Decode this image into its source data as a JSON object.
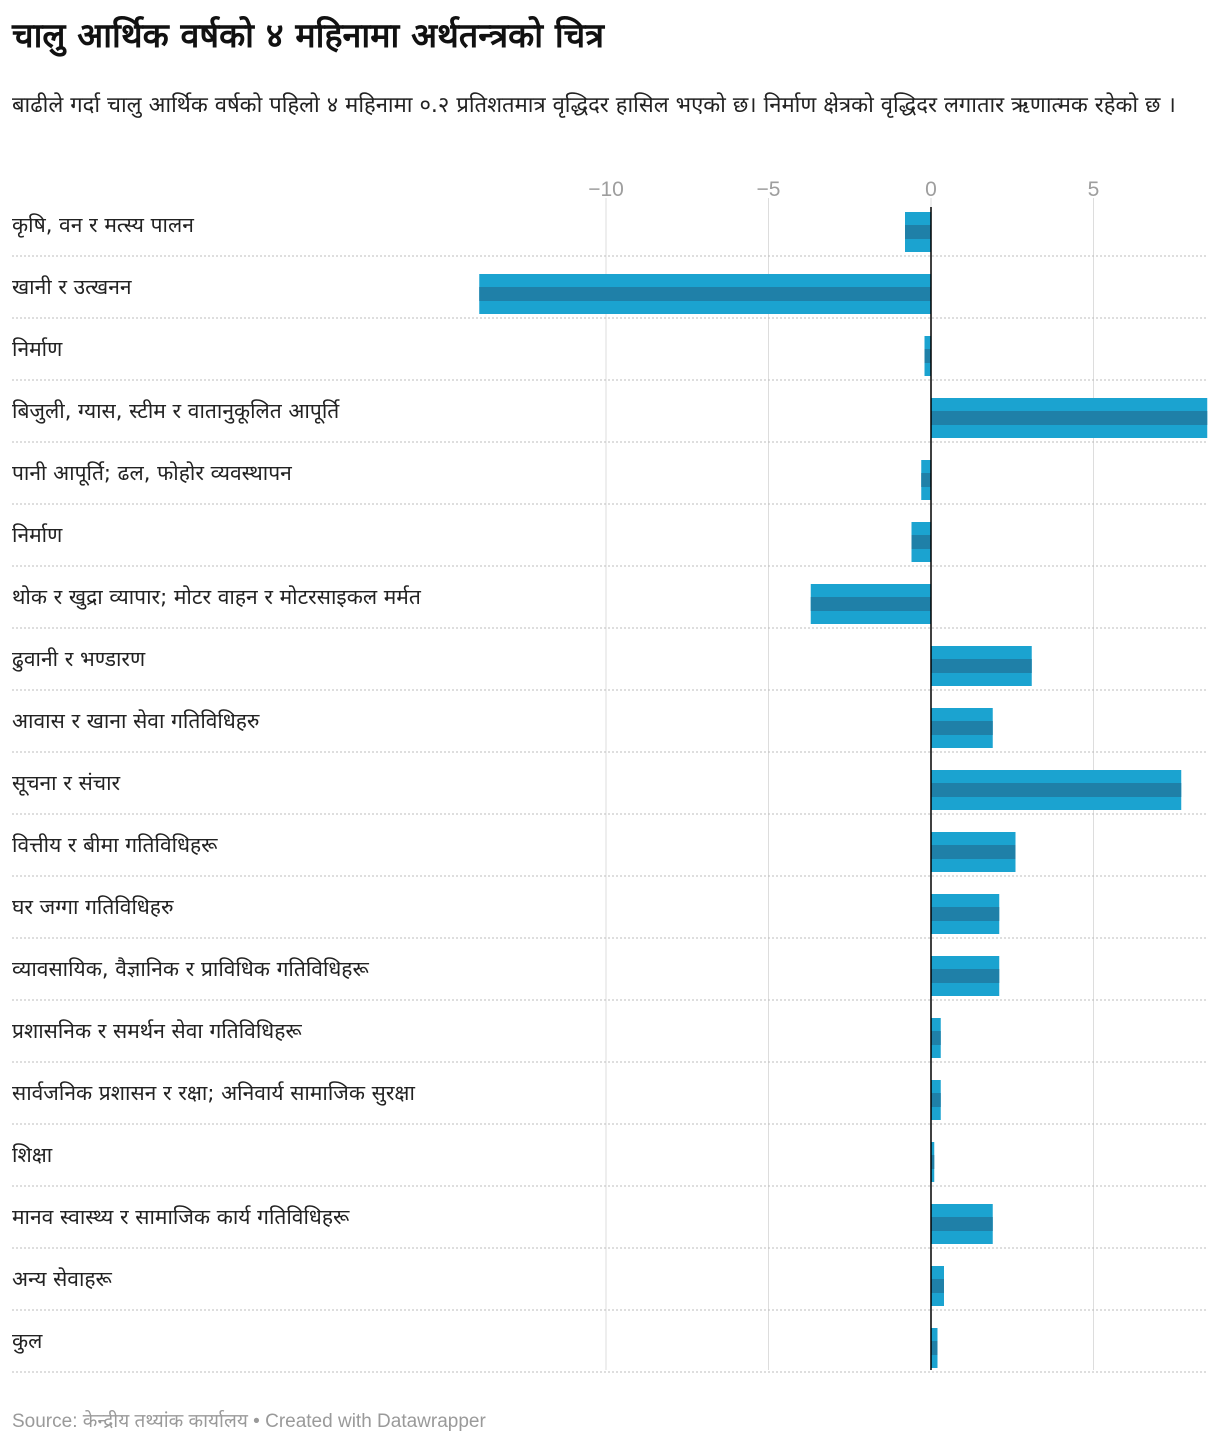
{
  "title": "चालु आर्थिक वर्षको ४ महिनामा अर्थतन्त्रको चित्र",
  "subtitle": "बाढीले गर्दा चालु आर्थिक वर्षको पहिलो ४ महिनामा ०.२ प्रतिशतमात्र वृद्धिदर हासिल भएको छ। निर्माण क्षेत्रको वृद्धिदर लगातार ऋणात्मक रहेको छ ।",
  "footer": {
    "source": "Source: केन्द्रीय तथ्यांक कार्यालय",
    "separator": " • ",
    "credit": "Created with Datawrapper"
  },
  "colors": {
    "bar": "#1ba3d0",
    "bar_inner": "#1f80a8",
    "zero_line": "#000000",
    "grid": "#dddddd",
    "tick_text": "#9e9e9e"
  },
  "chart_data": {
    "type": "bar",
    "orientation": "horizontal",
    "xlim": [
      -14,
      8.5
    ],
    "ticks": [
      -10,
      -5,
      0,
      5
    ],
    "tick_labels": [
      "−10",
      "−5",
      "0",
      "5"
    ],
    "categories": [
      "कृषि, वन र मत्स्य पालन",
      "खानी र उत्खनन",
      "निर्माण",
      "बिजुली, ग्यास, स्टीम र वातानुकूलित आपूर्ति",
      "पानी आपूर्ति; ढल, फोहोर व्यवस्थापन",
      "निर्माण",
      "थोक र खुद्रा व्यापार; मोटर वाहन र मोटरसाइकल मर्मत",
      "ढुवानी र भण्डारण",
      "आवास र खाना सेवा गतिविधिहरु",
      "सूचना र संचार",
      "वित्तीय र बीमा गतिविधिहरू",
      "घर जग्गा गतिविधिहरु",
      "व्यावसायिक, वैज्ञानिक र प्राविधिक गतिविधिहरू",
      "प्रशासनिक र समर्थन सेवा गतिविधिहरू",
      "सार्वजनिक प्रशासन र रक्षा; अनिवार्य सामाजिक सुरक्षा",
      "शिक्षा",
      "मानव स्वास्थ्य र सामाजिक कार्य गतिविधिहरू",
      "अन्य सेवाहरू",
      "कुल"
    ],
    "values": [
      -0.8,
      -13.9,
      -0.2,
      8.5,
      -0.3,
      -0.6,
      -3.7,
      3.1,
      1.9,
      7.7,
      2.6,
      2.1,
      2.1,
      0.3,
      0.3,
      0.1,
      1.9,
      0.4,
      0.2
    ]
  }
}
